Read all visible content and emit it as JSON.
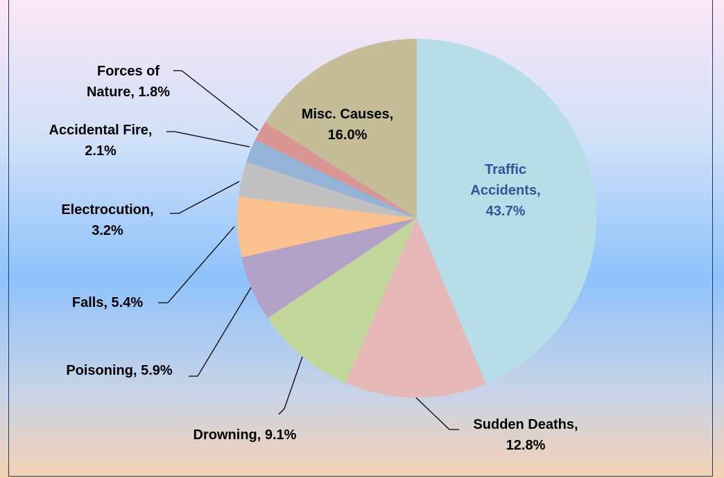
{
  "chart_data": {
    "type": "pie",
    "values": [
      43.7,
      12.8,
      9.1,
      5.9,
      5.4,
      3.2,
      2.1,
      1.8,
      16.0
    ],
    "value_labels": [
      "Traffic Accidents, 43.7%",
      "Sudden Deaths, 12.8%",
      "Drowning, 9.1%",
      "Poisoning, 5.9%",
      "Falls, 5.4%",
      "Electrocution, 3.2%",
      "Accidental Fire, 2.1%",
      "Forces of Nature, 1.8%",
      "Misc. Causes, 16.0%"
    ],
    "colors": [
      "#b7dde8",
      "#e6b9b8",
      "#c3d69b",
      "#b3a2c7",
      "#fac090",
      "#c0c0c0",
      "#95b3d7",
      "#d99694",
      "#c4bd97"
    ]
  }
}
